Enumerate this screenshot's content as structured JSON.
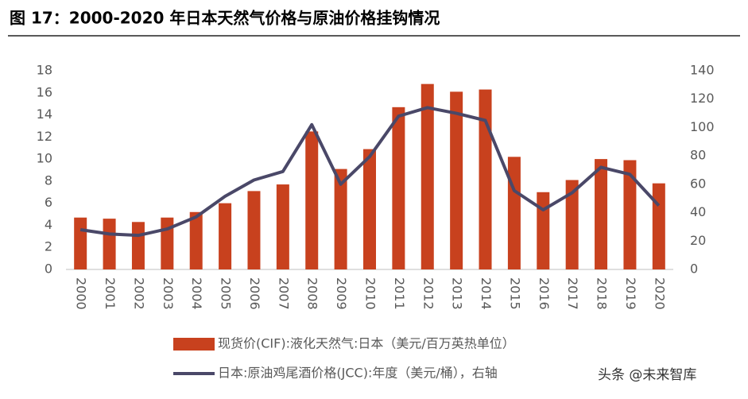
{
  "chart_data": {
    "type": "bar_line",
    "title": "图 17：2000-2020 年日本天然气价格与原油价格挂钩情况",
    "categories": [
      "2000",
      "2001",
      "2002",
      "2003",
      "2004",
      "2005",
      "2006",
      "2007",
      "2008",
      "2009",
      "2010",
      "2011",
      "2012",
      "2013",
      "2014",
      "2015",
      "2016",
      "2017",
      "2018",
      "2019",
      "2020"
    ],
    "series": [
      {
        "name": "现货价(CIF):液化天然气:日本（美元/百万英热单位）",
        "color": "#c8411e",
        "kind": "bar",
        "axis": "y",
        "values": [
          4.7,
          4.6,
          4.3,
          4.7,
          5.2,
          6.0,
          7.1,
          7.7,
          12.5,
          9.1,
          10.9,
          14.7,
          16.8,
          16.1,
          16.3,
          10.2,
          7.0,
          8.1,
          10.0,
          9.9,
          7.8
        ]
      },
      {
        "name": "日本:原油鸡尾酒价格(JCC):年度（美元/桶），右轴",
        "color": "#4a4868",
        "kind": "line",
        "axis": "y2",
        "values": [
          28,
          25,
          24,
          28.5,
          37,
          51.5,
          63,
          69,
          102,
          60,
          79.5,
          108,
          114,
          110,
          105,
          55.5,
          42,
          54,
          72,
          67,
          45
        ]
      }
    ],
    "ylim": [
      0,
      18
    ],
    "yticks": [
      0,
      2,
      4,
      6,
      8,
      10,
      12,
      14,
      16,
      18
    ],
    "y2lim": [
      0,
      140
    ],
    "y2ticks": [
      0,
      20,
      40,
      60,
      80,
      100,
      120,
      140
    ],
    "grid": false
  },
  "watermark": "头条 @未来智库"
}
